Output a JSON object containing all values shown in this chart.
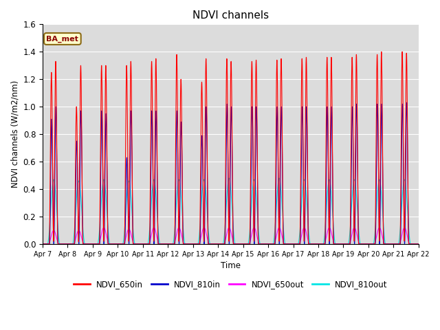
{
  "title": "NDVI channels",
  "xlabel": "Time",
  "ylabel": "NDVI channels (W/m2/nm)",
  "ylim": [
    0,
    1.6
  ],
  "annotation": "BA_met",
  "colors": {
    "NDVI_650in": "#ff0000",
    "NDVI_810in": "#0000cc",
    "NDVI_650out": "#ff00ff",
    "NDVI_810out": "#00e5e5"
  },
  "bg_color": "#dcdcdc",
  "xtick_labels": [
    "Apr 7",
    "Apr 8",
    "Apr 9",
    "Apr 10",
    "Apr 11",
    "Apr 12",
    "Apr 13",
    "Apr 14",
    "Apr 15",
    "Apr 16",
    "Apr 17",
    "Apr 18",
    "Apr 19",
    "Apr 20",
    "Apr 21",
    "Apr 22"
  ],
  "peaks_650in_a": [
    1.25,
    1.0,
    1.3,
    1.3,
    1.33,
    1.38,
    1.18,
    1.35,
    1.33,
    1.34,
    1.35,
    1.36,
    1.36,
    1.38,
    1.4,
    1.39
  ],
  "peaks_650in_b": [
    1.33,
    1.3,
    1.3,
    1.33,
    1.35,
    1.2,
    1.35,
    1.33,
    1.34,
    1.35,
    1.36,
    1.36,
    1.38,
    1.4,
    1.39,
    1.39
  ],
  "peaks_810in_a": [
    0.91,
    0.75,
    0.97,
    0.63,
    0.97,
    0.97,
    0.79,
    1.02,
    1.0,
    1.0,
    1.0,
    1.0,
    1.0,
    1.02,
    1.02,
    1.03
  ],
  "peaks_810in_b": [
    1.0,
    0.97,
    0.95,
    0.97,
    0.97,
    0.89,
    1.0,
    1.0,
    1.0,
    1.0,
    1.0,
    1.0,
    1.02,
    1.02,
    1.03,
    1.03
  ],
  "peaks_650out": [
    0.1,
    0.1,
    0.12,
    0.11,
    0.12,
    0.12,
    0.12,
    0.12,
    0.12,
    0.12,
    0.12,
    0.12,
    0.12,
    0.12,
    0.12,
    0.12
  ],
  "peaks_810out": [
    0.47,
    0.46,
    0.47,
    0.46,
    0.47,
    0.47,
    0.47,
    0.48,
    0.47,
    0.48,
    0.47,
    0.47,
    0.47,
    0.47,
    0.47,
    0.47
  ]
}
